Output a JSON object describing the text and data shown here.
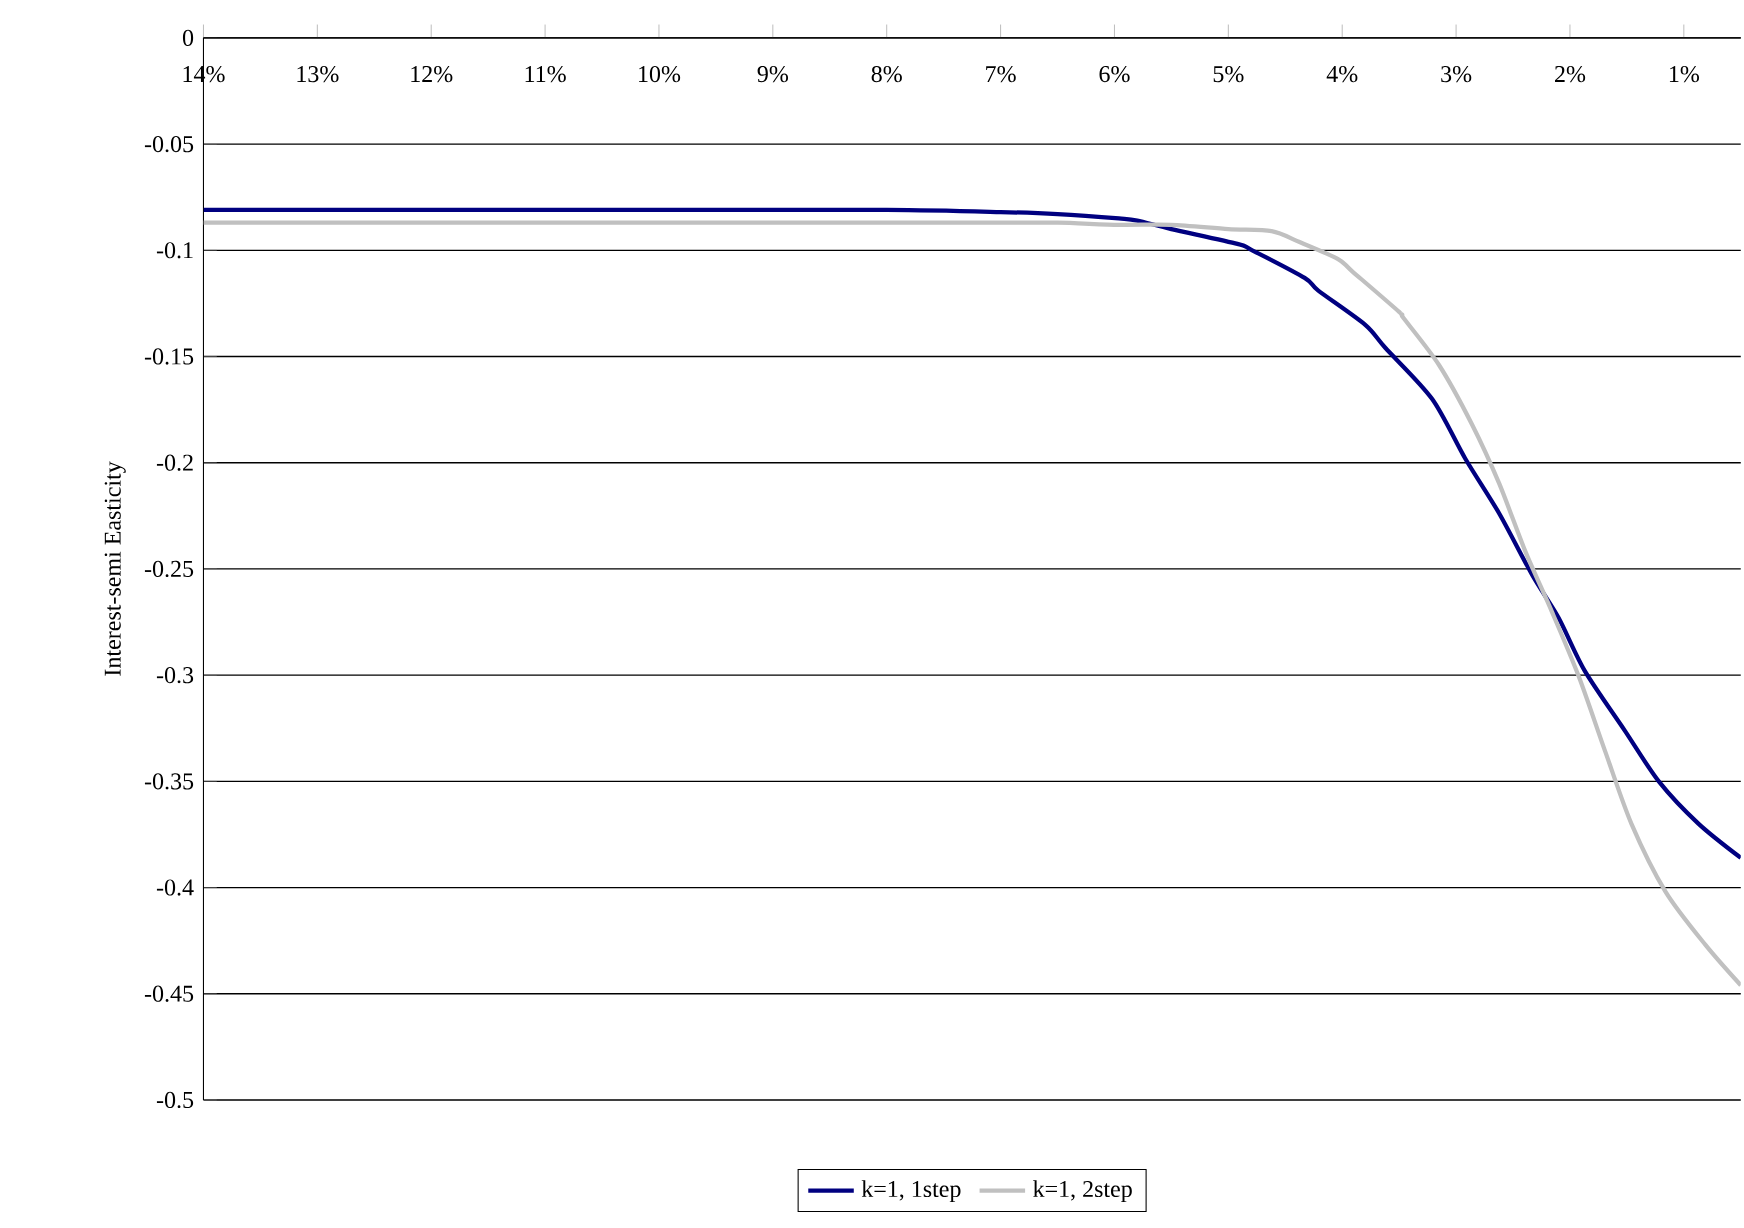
{
  "chart_data": {
    "type": "line",
    "ylabel": "Interest-semi Easticity",
    "xlim": [
      14,
      0.5
    ],
    "xticks": [
      {
        "value": 14,
        "label": "14%"
      },
      {
        "value": 13,
        "label": "13%"
      },
      {
        "value": 12,
        "label": "12%"
      },
      {
        "value": 11,
        "label": "11%"
      },
      {
        "value": 10,
        "label": "10%"
      },
      {
        "value": 9,
        "label": "9%"
      },
      {
        "value": 8,
        "label": "8%"
      },
      {
        "value": 7,
        "label": "7%"
      },
      {
        "value": 6,
        "label": "6%"
      },
      {
        "value": 5,
        "label": "5%"
      },
      {
        "value": 4,
        "label": "4%"
      },
      {
        "value": 3,
        "label": "3%"
      },
      {
        "value": 2,
        "label": "2%"
      },
      {
        "value": 1,
        "label": "1%"
      }
    ],
    "ylim": [
      -0.5,
      0
    ],
    "yticks": [
      0,
      -0.05,
      -0.1,
      -0.15,
      -0.2,
      -0.25,
      -0.3,
      -0.35,
      -0.4,
      -0.45,
      -0.5
    ],
    "grid": "y",
    "legend": "bottom",
    "marker": "none",
    "line_style": "solid",
    "series": [
      {
        "name": "k=1, 1step",
        "color": "#000080",
        "x": [
          14,
          12,
          10,
          8,
          7,
          6.5,
          5.96,
          5.8,
          5.5,
          4.92,
          4.79,
          4.33,
          4.21,
          3.8,
          3.62,
          3.21,
          2.92,
          2.62,
          2.33,
          2.1,
          1.87,
          1.52,
          1.22,
          0.87,
          0.5
        ],
        "values": [
          -0.081,
          -0.081,
          -0.081,
          -0.081,
          -0.082,
          -0.083,
          -0.085,
          -0.086,
          -0.09,
          -0.097,
          -0.1,
          -0.113,
          -0.119,
          -0.135,
          -0.146,
          -0.17,
          -0.198,
          -0.224,
          -0.253,
          -0.273,
          -0.298,
          -0.326,
          -0.35,
          -0.37,
          -0.386
        ]
      },
      {
        "name": "k=1, 2step",
        "color": "#c0c0c0",
        "x": [
          14,
          12,
          10,
          8,
          7,
          6.5,
          5.96,
          5.5,
          5,
          4.62,
          4.38,
          4.04,
          3.91,
          3.5,
          3.46,
          3.15,
          2.86,
          2.62,
          2.39,
          2.16,
          1.92,
          1.69,
          1.46,
          1.16,
          0.81,
          0.5
        ],
        "values": [
          -0.087,
          -0.087,
          -0.087,
          -0.087,
          -0.087,
          -0.087,
          -0.088,
          -0.088,
          -0.09,
          -0.091,
          -0.096,
          -0.104,
          -0.11,
          -0.129,
          -0.132,
          -0.154,
          -0.182,
          -0.21,
          -0.242,
          -0.27,
          -0.301,
          -0.336,
          -0.37,
          -0.402,
          -0.427,
          -0.446
        ]
      }
    ]
  }
}
